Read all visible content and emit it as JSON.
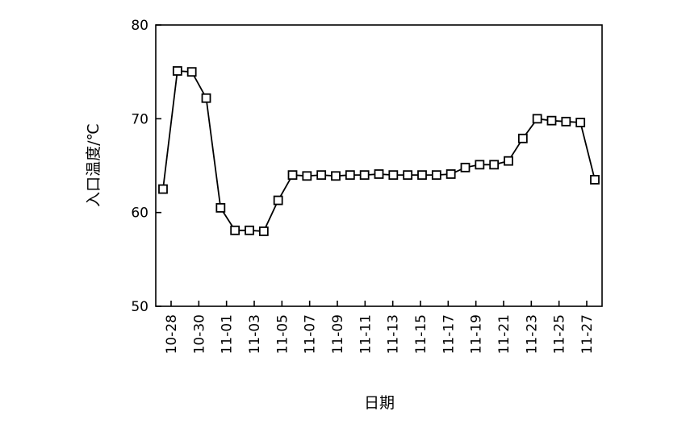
{
  "chart_data": {
    "type": "line",
    "title": "",
    "xlabel": "日期",
    "ylabel": "入口温度/℃",
    "ylim": [
      50,
      80
    ],
    "yticks": [
      50,
      60,
      70,
      80
    ],
    "xtick_labels": [
      "10-28",
      "10-30",
      "11-01",
      "11-03",
      "11-05",
      "11-07",
      "11-09",
      "11-11",
      "11-13",
      "11-15",
      "11-17",
      "11-19",
      "11-21",
      "11-23",
      "11-25",
      "11-27"
    ],
    "grid": false,
    "legend": "none",
    "marker": "open-square",
    "series": [
      {
        "values": [
          62.5,
          75.1,
          75.0,
          72.2,
          60.5,
          58.1,
          58.1,
          58.0,
          61.3,
          64.0,
          63.9,
          64.0,
          63.9,
          64.0,
          64.0,
          64.1,
          64.0,
          64.0,
          64.0,
          64.0,
          64.1,
          64.8,
          65.1,
          65.1,
          65.5,
          67.9,
          70.0,
          69.8,
          69.7,
          69.6,
          63.5
        ]
      }
    ],
    "colors": {
      "line": "#000000",
      "marker_fill": "#ffffff"
    }
  }
}
